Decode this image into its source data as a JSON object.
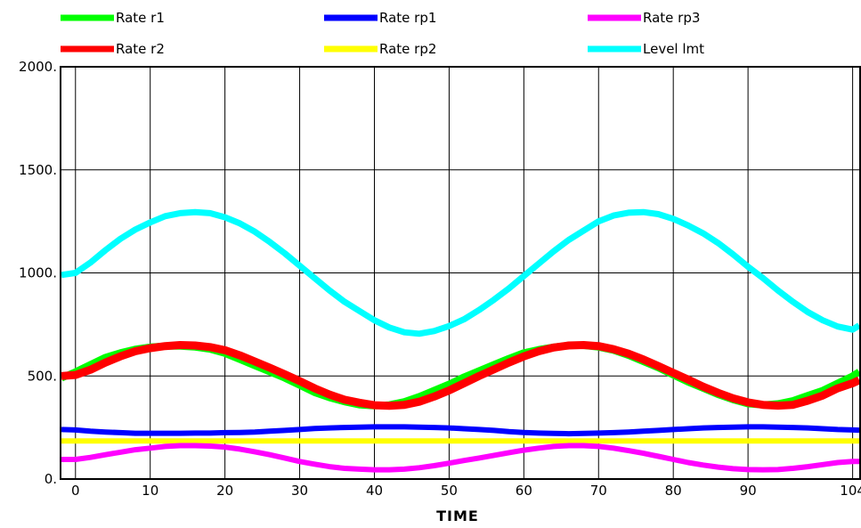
{
  "chart_data": {
    "type": "line",
    "title": "",
    "xlabel": "TIME",
    "ylabel": "",
    "xlim": [
      -2,
      105
    ],
    "ylim": [
      0,
      2000
    ],
    "grid": true,
    "legend_position": "top",
    "x_ticks": [
      {
        "value": 0,
        "label": "0"
      },
      {
        "value": 10,
        "label": "10"
      },
      {
        "value": 20,
        "label": "20"
      },
      {
        "value": 30,
        "label": "30"
      },
      {
        "value": 40,
        "label": "40"
      },
      {
        "value": 50,
        "label": "50"
      },
      {
        "value": 60,
        "label": "60"
      },
      {
        "value": 70,
        "label": "70"
      },
      {
        "value": 80,
        "label": "80"
      },
      {
        "value": 90,
        "label": "90"
      },
      {
        "value": 104,
        "label": "104"
      }
    ],
    "y_ticks": [
      {
        "value": 0,
        "label": "0."
      },
      {
        "value": 500,
        "label": "500."
      },
      {
        "value": 1000,
        "label": "1000."
      },
      {
        "value": 1500,
        "label": "1500."
      },
      {
        "value": 2000,
        "label": "2000."
      }
    ],
    "x": [
      -2,
      0,
      2,
      4,
      6,
      8,
      10,
      12,
      14,
      16,
      18,
      20,
      22,
      24,
      26,
      28,
      30,
      32,
      34,
      36,
      38,
      40,
      42,
      44,
      46,
      48,
      50,
      52,
      54,
      56,
      58,
      60,
      62,
      64,
      66,
      68,
      70,
      72,
      74,
      76,
      78,
      80,
      82,
      84,
      86,
      88,
      90,
      92,
      94,
      96,
      98,
      100,
      102,
      104,
      105
    ],
    "series": [
      {
        "name": "Rate r1",
        "color": "#00ff00",
        "width": 8,
        "values": [
          490,
          520,
          555,
          590,
          612,
          630,
          640,
          645,
          645,
          640,
          630,
          610,
          580,
          550,
          520,
          490,
          455,
          420,
          395,
          375,
          360,
          355,
          360,
          375,
          400,
          430,
          460,
          495,
          525,
          555,
          585,
          612,
          628,
          640,
          648,
          648,
          640,
          625,
          600,
          570,
          540,
          505,
          470,
          440,
          410,
          385,
          365,
          360,
          365,
          380,
          405,
          430,
          465,
          500,
          520
        ]
      },
      {
        "name": "Rate r2",
        "color": "#ff0000",
        "width": 9,
        "values": [
          500,
          505,
          530,
          565,
          595,
          620,
          635,
          645,
          650,
          648,
          640,
          625,
          600,
          570,
          540,
          508,
          475,
          440,
          410,
          385,
          370,
          358,
          355,
          360,
          375,
          400,
          430,
          465,
          500,
          532,
          565,
          595,
          620,
          638,
          648,
          650,
          645,
          630,
          608,
          580,
          548,
          515,
          482,
          448,
          418,
          392,
          372,
          360,
          356,
          360,
          380,
          405,
          440,
          465,
          480
        ]
      },
      {
        "name": "Rate rp1",
        "color": "#0000ff",
        "width": 6,
        "values": [
          240,
          238,
          232,
          228,
          225,
          222,
          222,
          222,
          222,
          223,
          223,
          225,
          226,
          228,
          232,
          236,
          240,
          245,
          248,
          250,
          252,
          253,
          253,
          253,
          252,
          250,
          248,
          244,
          240,
          236,
          230,
          226,
          223,
          221,
          220,
          221,
          223,
          225,
          228,
          232,
          236,
          240,
          244,
          248,
          250,
          252,
          253,
          253,
          252,
          250,
          248,
          244,
          240,
          238,
          237
        ]
      },
      {
        "name": "Rate rp2",
        "color": "#ffff00",
        "width": 6,
        "values": [
          185,
          185,
          185,
          185,
          185,
          185,
          185,
          185,
          185,
          185,
          185,
          185,
          185,
          185,
          185,
          185,
          185,
          185,
          185,
          185,
          185,
          185,
          185,
          185,
          185,
          185,
          185,
          185,
          185,
          185,
          185,
          185,
          185,
          185,
          185,
          185,
          185,
          185,
          185,
          185,
          185,
          185,
          185,
          185,
          185,
          185,
          185,
          185,
          185,
          185,
          185,
          185,
          185,
          185,
          185
        ]
      },
      {
        "name": "Rate rp3",
        "color": "#ff00ff",
        "width": 6,
        "values": [
          95,
          95,
          105,
          118,
          130,
          142,
          150,
          158,
          162,
          162,
          160,
          155,
          145,
          132,
          118,
          102,
          85,
          72,
          60,
          52,
          48,
          45,
          45,
          48,
          55,
          65,
          77,
          90,
          102,
          115,
          128,
          140,
          150,
          158,
          162,
          162,
          158,
          150,
          138,
          125,
          110,
          95,
          80,
          68,
          58,
          50,
          46,
          45,
          46,
          52,
          60,
          70,
          80,
          85,
          85
        ]
      },
      {
        "name": "Level lmt",
        "color": "#00ffff",
        "width": 7,
        "values": [
          990,
          1000,
          1050,
          1110,
          1165,
          1210,
          1245,
          1275,
          1290,
          1295,
          1290,
          1270,
          1240,
          1200,
          1150,
          1095,
          1035,
          975,
          915,
          860,
          815,
          770,
          735,
          712,
          705,
          718,
          742,
          775,
          820,
          870,
          925,
          985,
          1045,
          1105,
          1160,
          1205,
          1250,
          1278,
          1292,
          1295,
          1285,
          1262,
          1230,
          1192,
          1145,
          1090,
          1030,
          975,
          915,
          860,
          810,
          770,
          740,
          725,
          745
        ]
      }
    ]
  }
}
